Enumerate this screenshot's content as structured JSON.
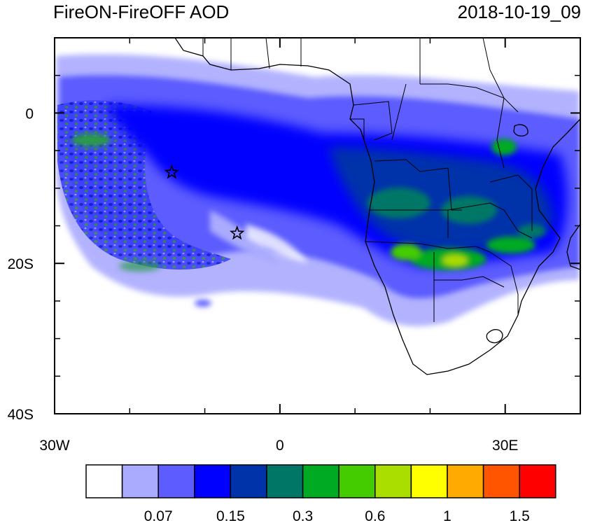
{
  "title": "FireON-FireOFF AOD",
  "timestamp": "2018-10-19_09",
  "map": {
    "lon_range": [
      -30,
      40
    ],
    "lat_range": [
      -40,
      10
    ],
    "x_ticks": [
      {
        "value": -30,
        "label": "30W"
      },
      {
        "value": 0,
        "label": "0"
      },
      {
        "value": 30,
        "label": "30E"
      }
    ],
    "y_ticks": [
      {
        "value": 0,
        "label": "0"
      },
      {
        "value": -20,
        "label": "20S"
      },
      {
        "value": -40,
        "label": "40S"
      }
    ],
    "stars": [
      {
        "lon": -14.4,
        "lat": -7.9
      },
      {
        "lon": -5.7,
        "lat": -16.0
      }
    ]
  },
  "colorbar": {
    "colors": [
      "#ffffff",
      "#aaaaff",
      "#5c5cff",
      "#0000ff",
      "#0033aa",
      "#007766",
      "#00aa22",
      "#44cc00",
      "#aadd00",
      "#ffff00",
      "#ffaa00",
      "#ff5500",
      "#ff0000"
    ],
    "labels": [
      {
        "after_box": 2,
        "text": "0.07"
      },
      {
        "after_box": 4,
        "text": "0.15"
      },
      {
        "after_box": 6,
        "text": "0.3"
      },
      {
        "after_box": 8,
        "text": "0.6"
      },
      {
        "after_box": 10,
        "text": "1"
      },
      {
        "after_box": 12,
        "text": "1.5"
      }
    ]
  }
}
